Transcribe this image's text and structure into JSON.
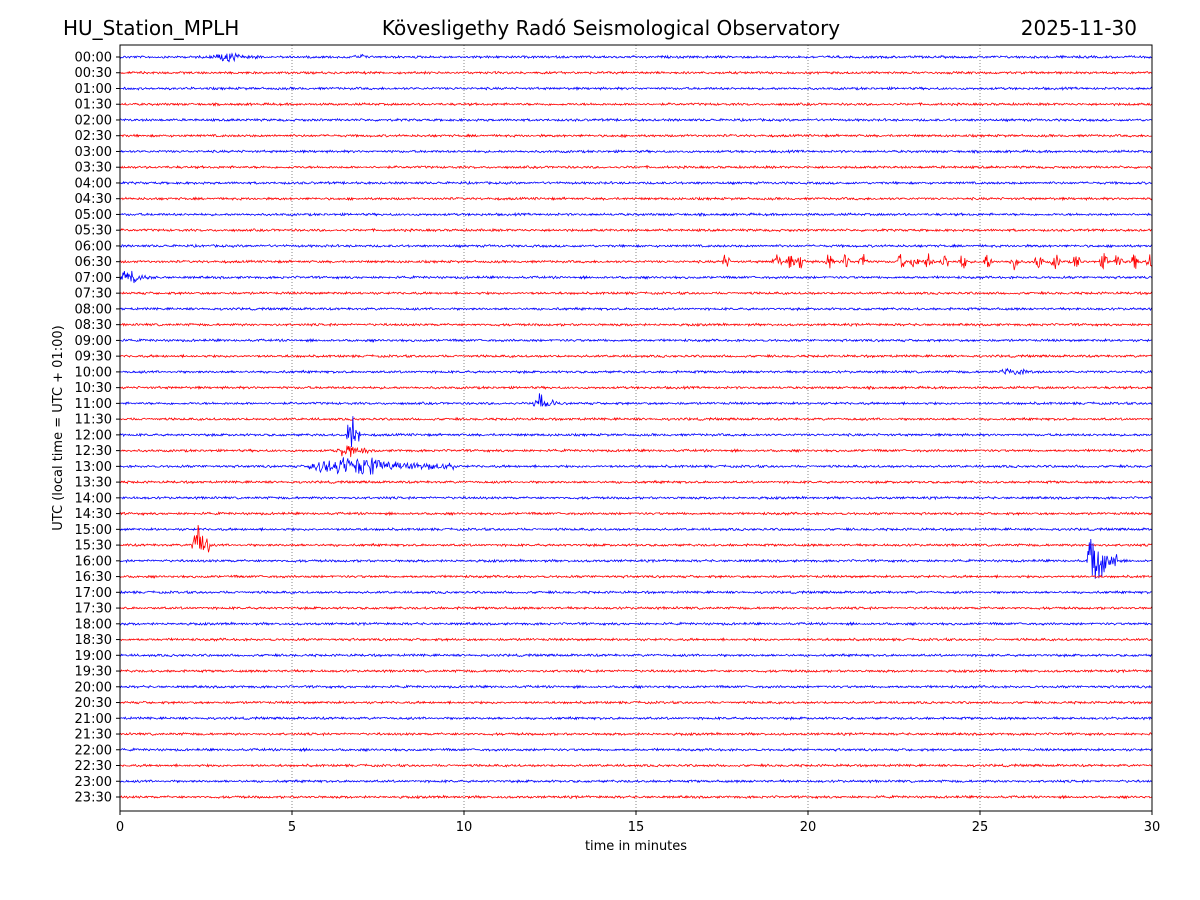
{
  "header": {
    "station": "HU_Station_MPLH",
    "observatory": "Kövesligethy Radó Seismological Observatory",
    "date": "2025-11-30"
  },
  "chart_data": {
    "type": "line",
    "title": "Kövesligethy Radó Seismological Observatory",
    "xlabel": "time in minutes",
    "ylabel": "UTC (local time = UTC + 01:00)",
    "xlim": [
      0,
      30
    ],
    "xticks": [
      "0",
      "5",
      "10",
      "15",
      "20",
      "25",
      "30"
    ],
    "grid": "vertical dotted at every 5 minutes",
    "colors": {
      "even": "#0000ff",
      "odd": "#ff0000"
    },
    "rows": [
      "00:00",
      "00:30",
      "01:00",
      "01:30",
      "02:00",
      "02:30",
      "03:00",
      "03:30",
      "04:00",
      "04:30",
      "05:00",
      "05:30",
      "06:00",
      "06:30",
      "07:00",
      "07:30",
      "08:00",
      "08:30",
      "09:00",
      "09:30",
      "10:00",
      "10:30",
      "11:00",
      "11:30",
      "12:00",
      "12:30",
      "13:00",
      "13:30",
      "14:00",
      "14:30",
      "15:00",
      "15:30",
      "16:00",
      "16:30",
      "17:00",
      "17:30",
      "18:00",
      "18:30",
      "19:00",
      "19:30",
      "20:00",
      "20:30",
      "21:00",
      "21:30",
      "22:00",
      "22:30",
      "23:00",
      "23:30"
    ],
    "noise_amplitude": 1,
    "events": [
      {
        "row": "00:00",
        "start": 2.6,
        "end": 4.2,
        "amplitude": 4
      },
      {
        "row": "00:00",
        "start": 6.8,
        "end": 7.3,
        "amplitude": 2.5
      },
      {
        "row": "06:30",
        "start": 17.5,
        "end": 30,
        "amplitude": 9,
        "bursts": [
          17.6,
          19.1,
          19.5,
          19.8,
          20.6,
          21.1,
          21.6,
          22.7,
          23.1,
          23.5,
          24.0,
          24.5,
          25.2,
          26.0,
          26.7,
          27.2,
          27.8,
          28.6,
          29.0,
          29.5,
          29.95
        ]
      },
      {
        "row": "07:00",
        "start": 0,
        "end": 1.0,
        "amplitude": 6
      },
      {
        "row": "10:00",
        "start": 25.5,
        "end": 27.0,
        "amplitude": 3
      },
      {
        "row": "11:00",
        "start": 12.0,
        "end": 12.7,
        "amplitude": 7
      },
      {
        "row": "12:00",
        "start": 6.6,
        "end": 7.0,
        "amplitude": 16
      },
      {
        "row": "12:30",
        "start": 6.3,
        "end": 7.2,
        "amplitude": 6
      },
      {
        "row": "13:00",
        "start": 5.5,
        "end": 9.7,
        "amplitude": 8
      },
      {
        "row": "15:30",
        "start": 2.1,
        "end": 2.6,
        "amplitude": 20
      },
      {
        "row": "16:00",
        "start": 28.1,
        "end": 29.0,
        "amplitude": 22
      }
    ]
  }
}
